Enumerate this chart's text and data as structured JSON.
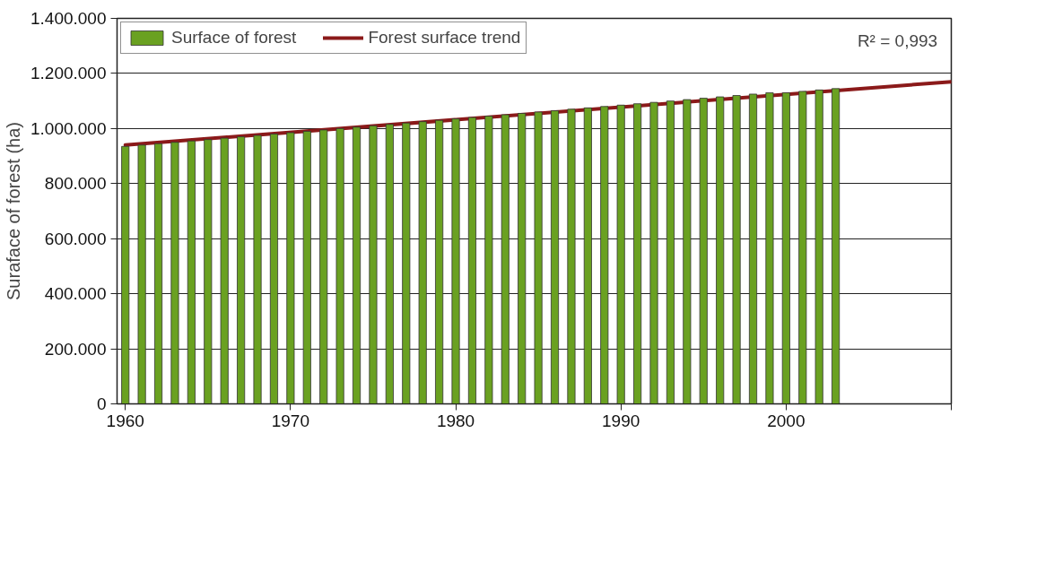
{
  "chart_data": {
    "type": "bar",
    "ylabel": "Suraface of forest (ha)",
    "x": [
      1960,
      1961,
      1962,
      1963,
      1964,
      1965,
      1966,
      1967,
      1968,
      1969,
      1970,
      1971,
      1972,
      1973,
      1974,
      1975,
      1976,
      1977,
      1978,
      1979,
      1980,
      1981,
      1982,
      1983,
      1984,
      1985,
      1986,
      1987,
      1988,
      1989,
      1990,
      1991,
      1992,
      1993,
      1994,
      1995,
      1996,
      1997,
      1998,
      1999,
      2000,
      2001,
      2002,
      2003
    ],
    "series": [
      {
        "name": "Surface of forest",
        "color": "#6aa121",
        "values": [
          935000,
          940000,
          945000,
          950000,
          955000,
          960000,
          965000,
          970000,
          975000,
          980000,
          985000,
          990000,
          995000,
          1000000,
          1005000,
          1010000,
          1015000,
          1020000,
          1025000,
          1030000,
          1035000,
          1040000,
          1045000,
          1050000,
          1055000,
          1060000,
          1065000,
          1070000,
          1075000,
          1080000,
          1085000,
          1090000,
          1095000,
          1100000,
          1105000,
          1110000,
          1115000,
          1120000,
          1125000,
          1130000,
          1130000,
          1135000,
          1140000,
          1145000
        ]
      },
      {
        "name": "Forest surface trend",
        "type": "line",
        "color": "#8b1a1a",
        "x": [
          1960,
          2010
        ],
        "values": [
          940000,
          1170000
        ]
      }
    ],
    "xlim": [
      1959.5,
      2010
    ],
    "xticks": [
      1960,
      1970,
      1980,
      1990,
      2000,
      {
        "value": 2010,
        "label": null
      }
    ],
    "ylim": [
      0,
      1400000
    ],
    "yticks": [
      {
        "value": 0,
        "label": "0"
      },
      {
        "value": 200000,
        "label": "200.000"
      },
      {
        "value": 400000,
        "label": "400.000"
      },
      {
        "value": 600000,
        "label": "600.000"
      },
      {
        "value": 800000,
        "label": "800.000"
      },
      {
        "value": 1000000,
        "label": "1.000.000"
      },
      {
        "value": 1200000,
        "label": "1.200.000"
      },
      {
        "value": 1400000,
        "label": "1.400.000"
      }
    ],
    "grid": "y",
    "legend": "top left",
    "annotations": [
      "R² = 0,993"
    ]
  }
}
